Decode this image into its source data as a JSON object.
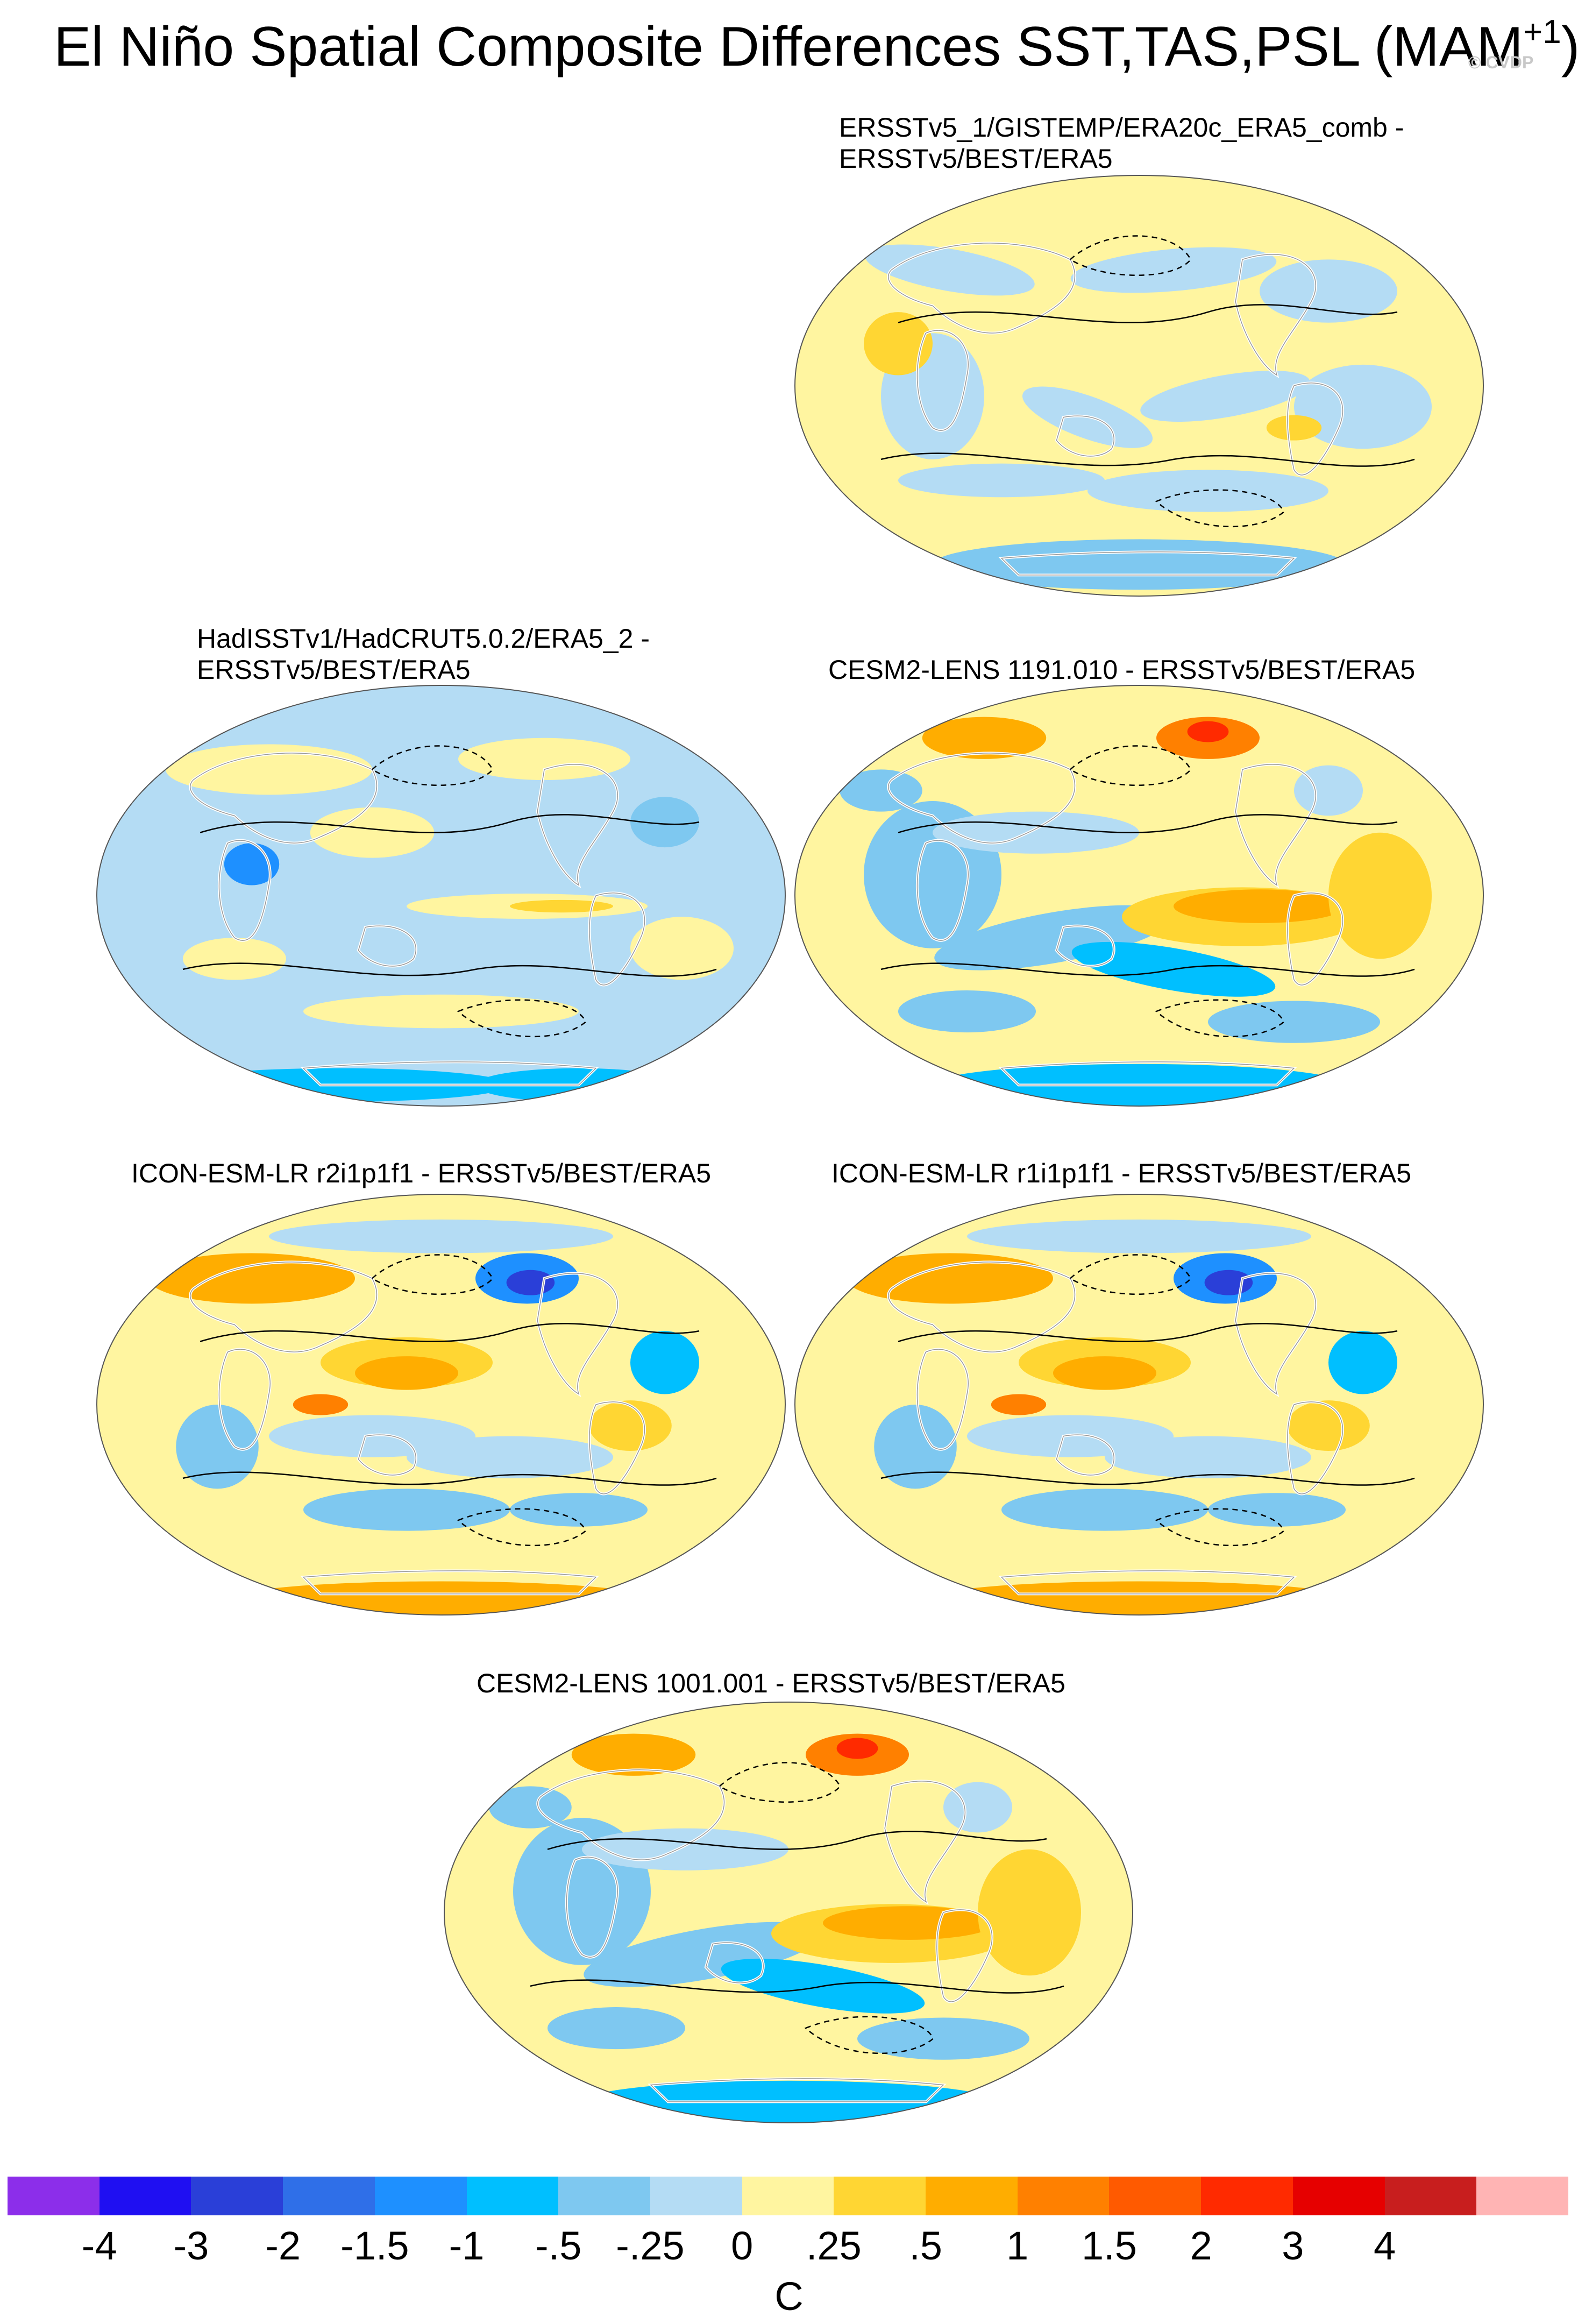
{
  "figure": {
    "title_main": "El Niño Spatial Composite Differences SST,TAS,PSL (MAM",
    "title_sup": "+1",
    "title_close": ")",
    "watermark": "© CVDP"
  },
  "panels": [
    {
      "line1": "ERSSTv5_1/GISTEMP/ERA20c_ERA5_comb -",
      "line2": "ERSSTv5/BEST/ERA5",
      "pattern": "weak"
    },
    {
      "line1": "HadISSTv1/HadCRUT5.0.2/ERA5_2 -",
      "line2": "ERSSTv5/BEST/ERA5",
      "pattern": "cool"
    },
    {
      "line1": "CESM2-LENS 1191.010 - ERSSTv5/BEST/ERA5",
      "line2": "",
      "pattern": "warm-pacific"
    },
    {
      "line1": "ICON-ESM-LR r2i1p1f1 - ERSSTv5/BEST/ERA5",
      "line2": "",
      "pattern": "icon"
    },
    {
      "line1": "ICON-ESM-LR r1i1p1f1 - ERSSTv5/BEST/ERA5",
      "line2": "",
      "pattern": "icon"
    },
    {
      "line1": "CESM2-LENS 1001.001 - ERSSTv5/BEST/ERA5",
      "line2": "",
      "pattern": "warm-pacific"
    }
  ],
  "colorbar": {
    "colors": [
      "#8c2eea",
      "#1f0ff2",
      "#2a3fd8",
      "#2f6fe8",
      "#1e90ff",
      "#00bfff",
      "#7ec8f0",
      "#b4dcf4",
      "#fff5a0",
      "#ffd633",
      "#ffad00",
      "#ff8000",
      "#ff5a00",
      "#ff2a00",
      "#e60000",
      "#c81e1e",
      "#ffb4b4"
    ],
    "labels": [
      "-4",
      "-3",
      "-2",
      "-1.5",
      "-1",
      "-.5",
      "-.25",
      "0",
      ".25",
      ".5",
      "1",
      "1.5",
      "2",
      "3",
      "4"
    ],
    "units": "C"
  }
}
